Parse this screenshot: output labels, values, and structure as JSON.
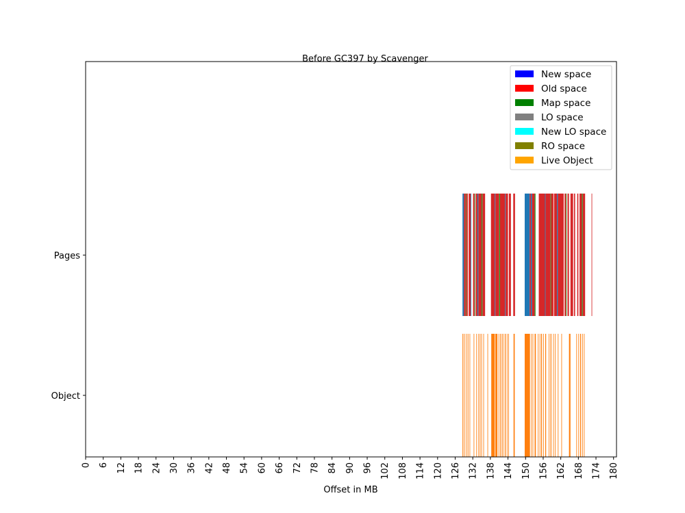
{
  "chart_data": {
    "type": "bar",
    "title": "Before GC397 by Scavenger",
    "xlabel": "Offset in MB",
    "ylabel": "",
    "xlim": [
      0,
      181
    ],
    "x_ticks": [
      "0",
      "6",
      "12",
      "18",
      "24",
      "30",
      "36",
      "42",
      "48",
      "54",
      "60",
      "66",
      "72",
      "78",
      "84",
      "90",
      "96",
      "102",
      "108",
      "114",
      "120",
      "126",
      "132",
      "138",
      "144",
      "150",
      "156",
      "162",
      "168",
      "174",
      "180"
    ],
    "y_categories": [
      "Pages",
      "Object"
    ],
    "legend_position": "top-right",
    "legend": [
      {
        "label": "New space",
        "color": "#0000ff"
      },
      {
        "label": "Old space",
        "color": "#ff0000"
      },
      {
        "label": "Map space",
        "color": "#008000"
      },
      {
        "label": "LO space",
        "color": "#808080"
      },
      {
        "label": "New LO space",
        "color": "#00ffff"
      },
      {
        "label": "RO space",
        "color": "#808000"
      },
      {
        "label": "Live Object",
        "color": "#ffa500"
      }
    ],
    "series": [
      {
        "row": "Pages",
        "segments": [
          [
            128.5,
            129.0,
            "#1f77b4"
          ],
          [
            129.0,
            129.6,
            "#d62728"
          ],
          [
            129.6,
            129.8,
            "#2ca02c"
          ],
          [
            129.8,
            130.3,
            "#d62728"
          ],
          [
            130.6,
            131.3,
            "#d62728"
          ],
          [
            131.3,
            131.5,
            "#1f77b4"
          ],
          [
            132.1,
            132.6,
            "#d62728"
          ],
          [
            132.6,
            132.8,
            "#2ca02c"
          ],
          [
            133.0,
            133.6,
            "#d62728"
          ],
          [
            133.6,
            133.9,
            "#1f77b4"
          ],
          [
            133.9,
            135.0,
            "#d62728"
          ],
          [
            135.0,
            135.3,
            "#2ca02c"
          ],
          [
            135.3,
            136.2,
            "#d62728"
          ],
          [
            138.2,
            139.5,
            "#d62728"
          ],
          [
            139.5,
            139.7,
            "#1f77b4"
          ],
          [
            139.7,
            141.0,
            "#d62728"
          ],
          [
            141.0,
            141.3,
            "#2ca02c"
          ],
          [
            141.3,
            143.0,
            "#d62728"
          ],
          [
            143.0,
            143.2,
            "#1f77b4"
          ],
          [
            143.2,
            144.0,
            "#d62728"
          ],
          [
            144.3,
            145.0,
            "#d62728"
          ],
          [
            145.8,
            146.4,
            "#d62728"
          ],
          [
            149.7,
            151.4,
            "#1f77b4"
          ],
          [
            151.4,
            151.8,
            "#d62728"
          ],
          [
            151.8,
            152.2,
            "#1f77b4"
          ],
          [
            152.2,
            153.1,
            "#d62728"
          ],
          [
            153.1,
            153.4,
            "#2ca02c"
          ],
          [
            154.5,
            156.6,
            "#d62728"
          ],
          [
            156.6,
            156.8,
            "#1f77b4"
          ],
          [
            156.8,
            158.5,
            "#d62728"
          ],
          [
            158.5,
            158.7,
            "#2ca02c"
          ],
          [
            158.7,
            159.5,
            "#d62728"
          ],
          [
            159.7,
            160.7,
            "#d62728"
          ],
          [
            160.7,
            161.0,
            "#1f77b4"
          ],
          [
            161.0,
            163.0,
            "#d62728"
          ],
          [
            163.3,
            163.8,
            "#d62728"
          ],
          [
            163.8,
            164.0,
            "#2ca02c"
          ],
          [
            164.3,
            164.8,
            "#d62728"
          ],
          [
            165.3,
            166.2,
            "#d62728"
          ],
          [
            166.5,
            166.9,
            "#d62728"
          ],
          [
            167.6,
            168.0,
            "#d62728"
          ],
          [
            168.4,
            169.2,
            "#d62728"
          ],
          [
            169.2,
            169.5,
            "#2ca02c"
          ],
          [
            169.5,
            170.3,
            "#d62728"
          ],
          [
            172.5,
            172.7,
            "#d62728"
          ]
        ]
      },
      {
        "row": "Object",
        "segments": [
          [
            128.5,
            128.8
          ],
          [
            129.2,
            129.4
          ],
          [
            129.8,
            130.0
          ],
          [
            130.3,
            130.5
          ],
          [
            130.9,
            131.1
          ],
          [
            132.3,
            132.5
          ],
          [
            133.2,
            133.4
          ],
          [
            133.9,
            134.1
          ],
          [
            134.4,
            134.6
          ],
          [
            134.9,
            135.1
          ],
          [
            135.6,
            135.8
          ],
          [
            137.0,
            137.2
          ],
          [
            138.3,
            139.5
          ],
          [
            139.7,
            140.4
          ],
          [
            140.8,
            141.0
          ],
          [
            141.4,
            141.7
          ],
          [
            142.1,
            142.4
          ],
          [
            142.9,
            143.2
          ],
          [
            143.6,
            143.8
          ],
          [
            144.1,
            144.3
          ],
          [
            145.9,
            146.3
          ],
          [
            149.7,
            151.5
          ],
          [
            151.9,
            152.1
          ],
          [
            152.4,
            152.6
          ],
          [
            153.1,
            153.5
          ],
          [
            154.2,
            154.4
          ],
          [
            154.8,
            155.0
          ],
          [
            155.3,
            155.6
          ],
          [
            156.0,
            156.2
          ],
          [
            156.7,
            157.0
          ],
          [
            157.9,
            158.1
          ],
          [
            158.5,
            158.8
          ],
          [
            159.4,
            159.6
          ],
          [
            160.0,
            160.2
          ],
          [
            161.0,
            161.2
          ],
          [
            162.2,
            162.4
          ],
          [
            164.8,
            165.3
          ],
          [
            167.3,
            167.5
          ],
          [
            168.0,
            168.2
          ],
          [
            168.6,
            168.9
          ],
          [
            169.3,
            169.5
          ],
          [
            169.9,
            170.1
          ]
        ]
      }
    ]
  }
}
